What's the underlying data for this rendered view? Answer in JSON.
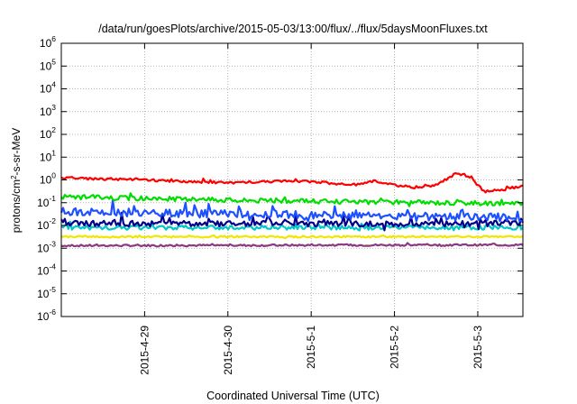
{
  "chart_data": {
    "type": "line",
    "title": "/data/run/goesPlots/archive/2015-05-03/13:00/flux/../flux/5daysMoonFluxes.txt",
    "xlabel": "Coordinated Universal Time (UTC)",
    "ylabel": {
      "prefix": "protons/cm",
      "sup": "2",
      "suffix": "-s-sr-MeV"
    },
    "yscale": "log",
    "ylim": [
      1e-06,
      1000000.0
    ],
    "yticks": [
      {
        "value": -6,
        "base": "10",
        "exp": "-6"
      },
      {
        "value": -5,
        "base": "10",
        "exp": "-5"
      },
      {
        "value": -4,
        "base": "10",
        "exp": "-4"
      },
      {
        "value": -3,
        "base": "10",
        "exp": "-3"
      },
      {
        "value": -2,
        "base": "10",
        "exp": "-2"
      },
      {
        "value": -1,
        "base": "10",
        "exp": "-1"
      },
      {
        "value": 0,
        "base": "10",
        "exp": "0"
      },
      {
        "value": 1,
        "base": "10",
        "exp": "1"
      },
      {
        "value": 2,
        "base": "10",
        "exp": "2"
      },
      {
        "value": 3,
        "base": "10",
        "exp": "3"
      },
      {
        "value": 4,
        "base": "10",
        "exp": "4"
      },
      {
        "value": 5,
        "base": "10",
        "exp": "5"
      },
      {
        "value": 6,
        "base": "10",
        "exp": "6"
      }
    ],
    "xlim": [
      "2015-04-28 00:00",
      "2015-05-03 13:00"
    ],
    "xticks": [
      {
        "value": "2015-04-29 00:00",
        "label": "2015-4-29"
      },
      {
        "value": "2015-04-30 00:00",
        "label": "2015-4-30"
      },
      {
        "value": "2015-05-01 00:00",
        "label": "2015-5-1"
      },
      {
        "value": "2015-05-02 00:00",
        "label": "2015-5-2"
      },
      {
        "value": "2015-05-03 00:00",
        "label": "2015-5-3"
      }
    ],
    "grid": true,
    "series": [
      {
        "color": "#8b3a7f",
        "base": 0.0013,
        "amp": 0.08,
        "spikes": 0.05,
        "points": [
          [
            "2015-04-28 00:00",
            0.0013
          ],
          [
            "2015-05-03 13:00",
            0.0014
          ]
        ]
      },
      {
        "color": "#f2e600",
        "base": 0.0032,
        "amp": 0.08,
        "spikes": 0.05,
        "points": [
          [
            "2015-04-28 00:00",
            0.0032
          ],
          [
            "2015-05-03 13:00",
            0.0032
          ]
        ]
      },
      {
        "color": "#00c8c8",
        "base": 0.0075,
        "amp": 0.18,
        "spikes": 0.15,
        "points": [
          [
            "2015-04-28 00:00",
            0.008
          ],
          [
            "2015-05-03 13:00",
            0.008
          ]
        ]
      },
      {
        "color": "#00008b",
        "base": 0.012,
        "amp": 0.25,
        "spikes": 0.3,
        "points": [
          [
            "2015-04-28 00:00",
            0.012
          ],
          [
            "2015-05-03 13:00",
            0.012
          ]
        ]
      },
      {
        "color": "#1e50ff",
        "base": 0.022,
        "amp": 0.35,
        "spikes": 0.35,
        "points": [
          [
            "2015-04-28 00:00",
            0.04
          ],
          [
            "2015-05-03 13:00",
            0.022
          ]
        ]
      },
      {
        "color": "#00dd00",
        "base": 0.12,
        "amp": 0.2,
        "spikes": 0.15,
        "points": [
          [
            "2015-04-28 00:00",
            0.18
          ],
          [
            "2015-04-30 12:00",
            0.12
          ],
          [
            "2015-05-03 13:00",
            0.09
          ]
        ]
      },
      {
        "color": "#ff0000",
        "base": 1.0,
        "amp": 0.1,
        "spikes": 0.08,
        "points": [
          [
            "2015-04-28 00:00",
            1.2
          ],
          [
            "2015-04-28 18:00",
            1.05
          ],
          [
            "2015-04-29 12:00",
            0.85
          ],
          [
            "2015-04-30 00:00",
            0.75
          ],
          [
            "2015-04-30 12:00",
            0.85
          ],
          [
            "2015-05-01 00:00",
            0.85
          ],
          [
            "2015-05-01 12:00",
            0.6
          ],
          [
            "2015-05-01 18:00",
            0.9
          ],
          [
            "2015-05-02 00:00",
            0.6
          ],
          [
            "2015-05-02 06:00",
            0.45
          ],
          [
            "2015-05-02 12:00",
            0.6
          ],
          [
            "2015-05-02 18:00",
            2.0
          ],
          [
            "2015-05-02 22:00",
            1.2
          ],
          [
            "2015-05-03 02:00",
            0.3
          ],
          [
            "2015-05-03 08:00",
            0.4
          ],
          [
            "2015-05-03 13:00",
            0.55
          ]
        ]
      }
    ]
  }
}
